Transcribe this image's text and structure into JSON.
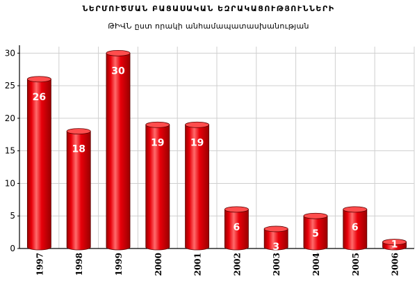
{
  "chart_data": {
    "type": "bar",
    "title": "ՆԵՐՄՈՒԾՄԱՆ ԲԱՑԱՍԱԿԱՆ ԵԶՐԱԿԱՑՈՒԹՅՈՒՆՆԵՐԻ",
    "subtitle": "ԹԻՎՆ ըստ որակի անհամապատասխանության",
    "xlabel": "",
    "ylabel": "",
    "categories": [
      "1997",
      "1998",
      "1999",
      "2000",
      "2001",
      "2002",
      "2003",
      "2004",
      "2005",
      "2006"
    ],
    "values": [
      26,
      18,
      30,
      19,
      19,
      6,
      3,
      5,
      6,
      1
    ],
    "ylim": [
      0,
      31
    ],
    "yticks": [
      0,
      5,
      10,
      15,
      20,
      25,
      30
    ],
    "grid": true,
    "legend": "none",
    "bar_style": "cylinder",
    "colors": {
      "bar": "#e8000a",
      "bar_light": "#ff6b6b",
      "bar_dark": "#9a0000",
      "bar_top": "#ff4d4d",
      "grid": "#cfcfcf",
      "label": "#ffffff"
    }
  }
}
